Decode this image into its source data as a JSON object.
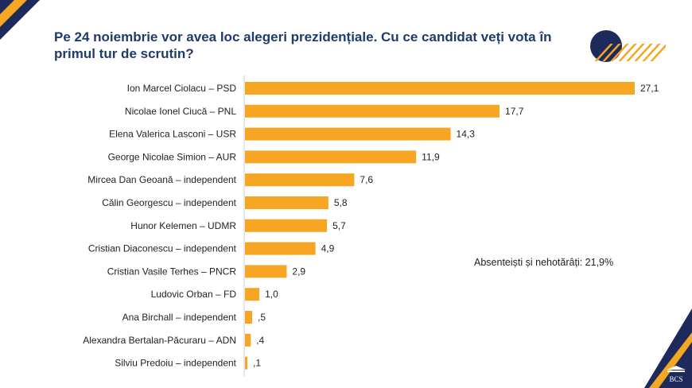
{
  "title": "Pe 24 noiembrie vor avea loc alegeri prezidențiale. Cu ce candidat veți vota în primul tur de scrutin?",
  "note": "Absenteiști și nehotărâți: 21,9%",
  "logo_text": "BCS",
  "colors": {
    "bar": "#f6a623",
    "title": "#1f3b6a",
    "navy": "#1e2a5c",
    "accent": "#f5a623"
  },
  "chart_data": {
    "type": "bar",
    "orientation": "horizontal",
    "title": "Pe 24 noiembrie vor avea loc alegeri prezidențiale. Cu ce candidat veți vota în primul tur de scrutin?",
    "xlabel": "",
    "ylabel": "",
    "xlim": [
      0,
      27.1
    ],
    "grid": false,
    "categories": [
      "Ion Marcel Ciolacu – PSD",
      "Nicolae Ionel Ciucă – PNL",
      "Elena Valerica Lasconi – USR",
      "George Nicolae Simion – AUR",
      "Mircea Dan Geoană – independent",
      "Călin Georgescu – independent",
      "Hunor Kelemen – UDMR",
      "Cristian Diaconescu – independent",
      "Cristian Vasile Terhes – PNCR",
      "Ludovic Orban – FD",
      "Ana Birchall – independent",
      "Alexandra Bertalan-Păcuraru – ADN",
      "Silviu Predoiu – independent"
    ],
    "values": [
      27.1,
      17.7,
      14.3,
      11.9,
      7.6,
      5.8,
      5.7,
      4.9,
      2.9,
      1.0,
      0.5,
      0.4,
      0.1
    ],
    "value_labels": [
      "27,1",
      "17,7",
      "14,3",
      "11,9",
      "7,6",
      "5,8",
      "5,7",
      "4,9",
      "2,9",
      "1,0",
      ",5",
      ",4",
      ",1"
    ]
  }
}
